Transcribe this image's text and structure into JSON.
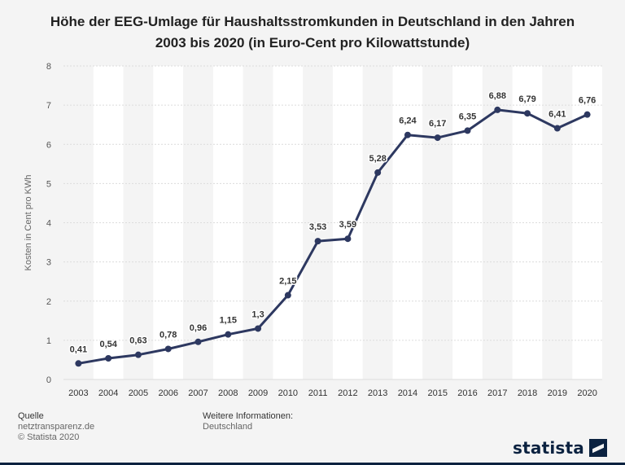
{
  "title_line1": "Höhe der EEG-Umlage für Haushaltsstromkunden in Deutschland in den Jahren",
  "title_line2": "2003 bis 2020 (in Euro-Cent pro Kilowattstunde)",
  "chart_data": {
    "type": "line",
    "title": "Höhe der EEG-Umlage für Haushaltsstromkunden in Deutschland in den Jahren 2003 bis 2020 (in Euro-Cent pro Kilowattstunde)",
    "xlabel": "",
    "ylabel": "Kosten in Cent pro KWh",
    "categories": [
      "2003",
      "2004",
      "2005",
      "2006",
      "2007",
      "2008",
      "2009",
      "2010",
      "2011",
      "2012",
      "2013",
      "2014",
      "2015",
      "2016",
      "2017",
      "2018",
      "2019",
      "2020"
    ],
    "values": [
      0.41,
      0.54,
      0.63,
      0.78,
      0.96,
      1.15,
      1.3,
      2.15,
      3.53,
      3.59,
      5.28,
      6.24,
      6.17,
      6.35,
      6.88,
      6.79,
      6.41,
      6.76
    ],
    "value_labels": [
      "0,41",
      "0,54",
      "0,63",
      "0,78",
      "0,96",
      "1,15",
      "1,3",
      "2,15",
      "3,53",
      "3,59",
      "5,28",
      "6,24",
      "6,17",
      "6,35",
      "6,88",
      "6,79",
      "6,41",
      "6,76"
    ],
    "ylim": [
      0,
      8
    ],
    "yticks": [
      "0",
      "1",
      "2",
      "3",
      "4",
      "5",
      "6",
      "7",
      "8"
    ],
    "grid": true,
    "line_color": "#2d3860"
  },
  "footer": {
    "source_label": "Quelle",
    "source_line1": "netztransparenz.de",
    "source_line2": "© Statista 2020",
    "info_label": "Weitere Informationen:",
    "info_line1": "Deutschland"
  },
  "logo_text": "statista"
}
